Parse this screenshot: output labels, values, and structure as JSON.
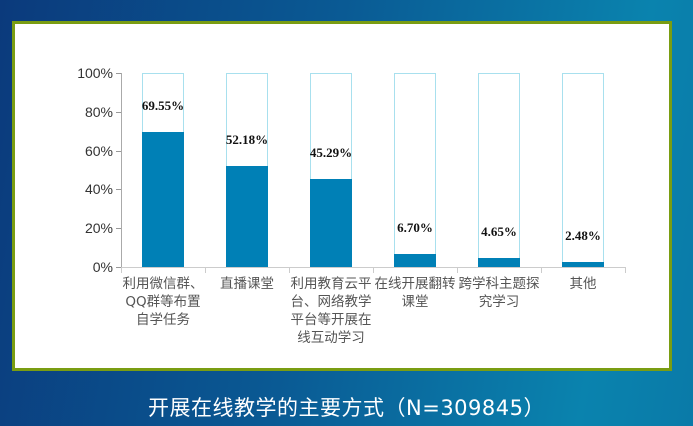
{
  "caption": "开展在线教学的主要方式（N=309845）",
  "colors": {
    "bar_fill": "#0080b6",
    "bar_frame": "#a8e0ee",
    "panel_border": "#7a9d12",
    "background_left": "#0b3a7c",
    "background_right": "#0a83ae"
  },
  "chart_data": {
    "type": "bar",
    "title": "开展在线教学的主要方式（N=309845）",
    "xlabel": "",
    "ylabel": "",
    "ylim": [
      0,
      100
    ],
    "y_ticks": [
      "0%",
      "20%",
      "40%",
      "60%",
      "80%",
      "100%"
    ],
    "grid": false,
    "legend": null,
    "categories": [
      "利用微信群、QQ群等布置自学任务",
      "直播课堂",
      "利用教育云平台、网络教学平台等开展在线互动学习",
      "在线开展翻转课堂",
      "跨学科主题探究学习",
      "其他"
    ],
    "category_display": [
      "利用微信群、\nQQ群等布置\n自学任务",
      "直播课堂",
      "利用教育云平\n台、网络教学\n平台等开展在\n线互动学习",
      "在线开展翻转\n课堂",
      "跨学科主题探\n究学习",
      "其他"
    ],
    "values": [
      69.55,
      52.18,
      45.29,
      6.7,
      4.65,
      2.48
    ],
    "value_labels": [
      "69.55%",
      "52.18%",
      "45.29%",
      "6.70%",
      "4.65%",
      "2.48%"
    ],
    "note": "Each bar drawn inside a 100% outline frame"
  }
}
